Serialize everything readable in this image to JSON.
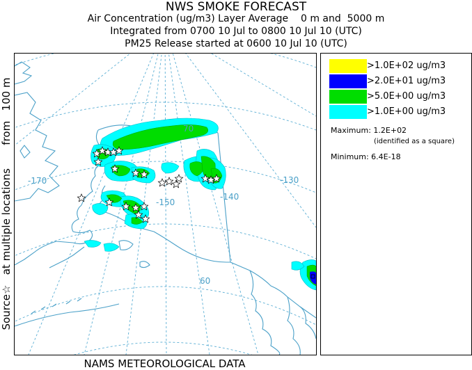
{
  "title": {
    "line1": "NWS SMOKE FORECAST",
    "line2": "Air Concentration (ug/m3) Layer Average    0 m and  5000 m",
    "line3": "Integrated from 0700 10 Jul to 0800 10 Jul 10 (UTC)",
    "line4": "PM25 Release started at 0600 10 Jul 10 (UTC)"
  },
  "side_label": "Source☆   at multiple locations       from   100 m",
  "footer": "NAMS METEOROLOGICAL DATA",
  "map": {
    "longitude_labels": [
      "-170",
      "-150",
      "-140",
      "-130"
    ],
    "latitude_labels": [
      "70",
      "60"
    ],
    "colors": {
      "land": "#4aa0c8",
      "graticule": "#5aaed4"
    }
  },
  "legend": {
    "items": [
      {
        "label": ">1.0E+02 ug/m3",
        "color": "#ffff00"
      },
      {
        "label": ">2.0E+01 ug/m3",
        "color": "#0000ff"
      },
      {
        "label": ">5.0E+00 ug/m3",
        "color": "#00dd00"
      },
      {
        "label": ">1.0E+00 ug/m3",
        "color": "#00ffff"
      }
    ],
    "maximum": "Maximum: 1.2E+02",
    "maximum_note": "(identified as a square)",
    "minimum": "Minimum: 6.4E-18"
  }
}
